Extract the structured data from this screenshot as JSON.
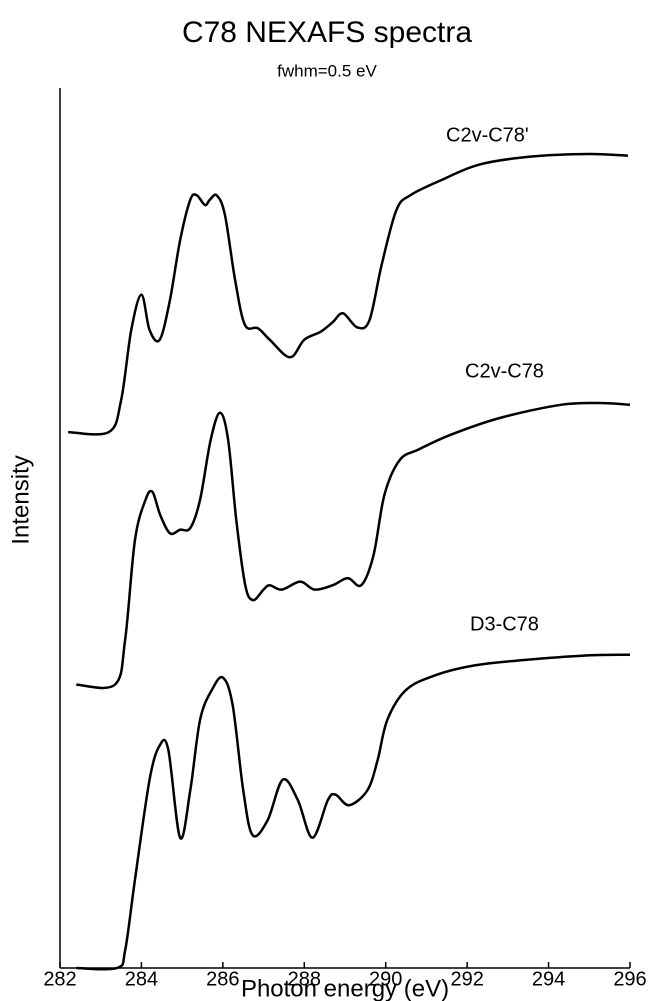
{
  "chart_data": {
    "type": "line",
    "title": "C78 NEXAFS spectra",
    "subtitle": "fwhm=0.5 eV",
    "x_label": "Photon energy (eV)",
    "y_label": "Intensity",
    "xlim": [
      282,
      296
    ],
    "xticks": [
      282,
      284,
      286,
      288,
      290,
      292,
      294,
      296
    ],
    "ylim": [
      0,
      100
    ],
    "color": "#000000",
    "series": [
      {
        "name": "C2v-C78'",
        "x": [
          282.2,
          283.2,
          283.5,
          283.75,
          284.0,
          284.2,
          284.45,
          284.7,
          284.95,
          285.2,
          285.36,
          285.56,
          285.68,
          285.85,
          286.05,
          286.3,
          286.54,
          286.86,
          287.15,
          287.65,
          288.0,
          288.4,
          288.7,
          288.95,
          289.3,
          289.6,
          289.9,
          290.26,
          290.6,
          291.35,
          292.3,
          293.55,
          295.0,
          295.95
        ],
        "values": [
          60.9,
          60.9,
          64.5,
          72.5,
          76.5,
          72.5,
          71.4,
          75.9,
          82.7,
          87.3,
          87.8,
          86.7,
          87.3,
          87.8,
          85.6,
          78.2,
          73.1,
          72.7,
          71.4,
          69.4,
          71.4,
          72.3,
          73.4,
          74.4,
          72.8,
          73.6,
          79.9,
          86.1,
          87.8,
          89.5,
          91.3,
          92.2,
          92.5,
          92.3
        ]
      },
      {
        "name": "C2v-C78",
        "x": [
          282.4,
          283.35,
          283.6,
          283.84,
          284.1,
          284.27,
          284.46,
          284.7,
          284.95,
          285.2,
          285.44,
          285.7,
          285.93,
          286.13,
          286.33,
          286.55,
          286.74,
          287.0,
          287.15,
          287.45,
          287.9,
          288.25,
          288.7,
          289.07,
          289.4,
          289.7,
          289.97,
          290.34,
          290.8,
          291.6,
          292.8,
          294.3,
          295.26,
          296.0
        ],
        "values": [
          32.2,
          32.2,
          37.3,
          48.6,
          53.2,
          54.1,
          51.5,
          49.4,
          49.8,
          50.0,
          53.2,
          60.0,
          63.1,
          60.0,
          50.9,
          43.5,
          41.8,
          43.0,
          43.5,
          43.0,
          43.9,
          43.0,
          43.5,
          44.3,
          43.5,
          46.9,
          53.8,
          57.7,
          58.9,
          60.6,
          62.5,
          64.0,
          64.2,
          64.0
        ]
      },
      {
        "name": "D3-C78",
        "x": [
          282.4,
          283.4,
          283.6,
          283.84,
          284.2,
          284.45,
          284.66,
          284.95,
          285.2,
          285.44,
          285.73,
          286.0,
          286.24,
          286.5,
          286.73,
          287.1,
          287.47,
          287.84,
          288.2,
          288.58,
          288.77,
          289.1,
          289.55,
          289.8,
          290.04,
          290.5,
          291.24,
          292.2,
          293.4,
          294.87,
          296.0
        ],
        "values": [
          0,
          0,
          2.0,
          10.0,
          21.4,
          25.3,
          24.8,
          14.8,
          20.2,
          28.2,
          31.6,
          33.0,
          29.9,
          20.2,
          15.1,
          16.8,
          21.4,
          19.1,
          14.8,
          19.1,
          19.7,
          18.5,
          20.2,
          23.6,
          28.2,
          31.6,
          33.3,
          34.4,
          35.0,
          35.5,
          35.6
        ]
      }
    ]
  }
}
